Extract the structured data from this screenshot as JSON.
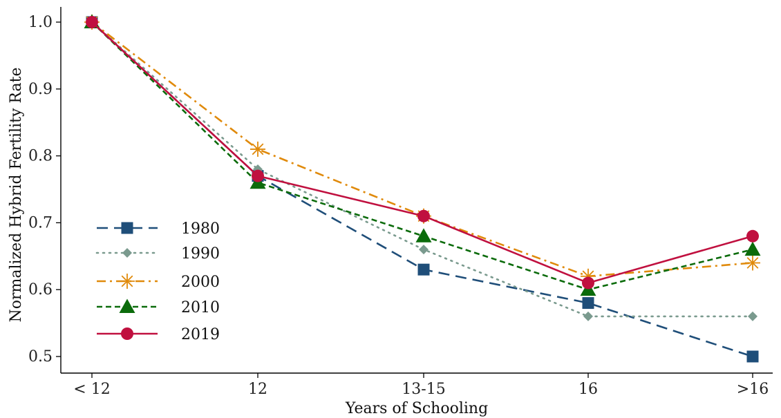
{
  "chart_data": {
    "type": "line",
    "xlabel": "Years of Schooling",
    "ylabel": "Normalized Hybrid Fertility Rate",
    "categories": [
      "< 12",
      "12",
      "13-15",
      "16",
      ">16"
    ],
    "ylim": [
      0.5,
      1.0
    ],
    "yticks": [
      0.5,
      0.6,
      0.7,
      0.8,
      0.9,
      1.0
    ],
    "ytick_labels": [
      "0.5",
      "0.6",
      "0.7",
      "0.8",
      "0.9",
      "1.0"
    ],
    "grid": false,
    "legend_position": "bottom-left",
    "series": [
      {
        "name": "1980",
        "values": [
          1.0,
          0.77,
          0.63,
          0.58,
          0.5
        ],
        "color": "#1f4e79",
        "dash": "long-dash",
        "marker": "square"
      },
      {
        "name": "1990",
        "values": [
          1.0,
          0.78,
          0.66,
          0.56,
          0.56
        ],
        "color": "#7a9a8e",
        "dash": "dotted",
        "marker": "diamond"
      },
      {
        "name": "2000",
        "values": [
          1.0,
          0.81,
          0.71,
          0.62,
          0.64
        ],
        "color": "#e08a0b",
        "dash": "dash-dot",
        "marker": "asterisk"
      },
      {
        "name": "2010",
        "values": [
          1.0,
          0.76,
          0.68,
          0.6,
          0.66
        ],
        "color": "#0b6b0b",
        "dash": "short-dash",
        "marker": "triangle"
      },
      {
        "name": "2019",
        "values": [
          1.0,
          0.77,
          0.71,
          0.61,
          0.68
        ],
        "color": "#c0103f",
        "dash": "solid",
        "marker": "circle"
      }
    ]
  }
}
